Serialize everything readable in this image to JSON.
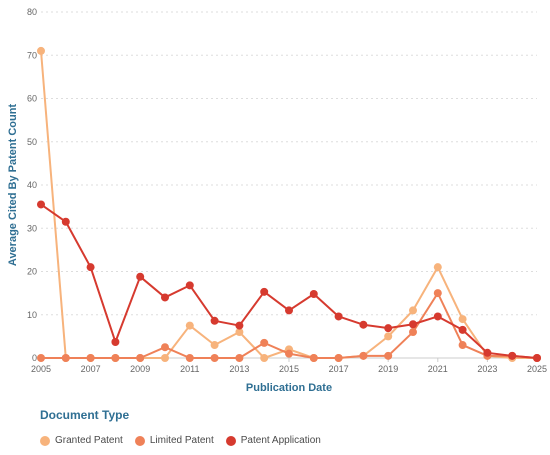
{
  "chart_data": {
    "type": "line",
    "title": "",
    "xlabel": "Publication Date",
    "ylabel": "Average Cited By Patent Count",
    "x": [
      2005,
      2006,
      2007,
      2008,
      2009,
      2010,
      2011,
      2012,
      2013,
      2014,
      2015,
      2016,
      2017,
      2018,
      2019,
      2020,
      2021,
      2022,
      2023,
      2024,
      2025
    ],
    "xlim": [
      2005,
      2025
    ],
    "ylim": [
      0,
      80
    ],
    "x_ticks": [
      "2005",
      "2007",
      "2009",
      "2011",
      "2013",
      "2015",
      "2017",
      "2019",
      "2021",
      "2023",
      "2025"
    ],
    "y_ticks": [
      "0",
      "10",
      "20",
      "30",
      "40",
      "50",
      "60",
      "70",
      "80"
    ],
    "grid": "horizontal-dotted",
    "legend_position": "bottom-left",
    "legend_title": "Document Type",
    "series": [
      {
        "name": "Granted Patent",
        "color": "#f7b37c",
        "values": [
          71,
          0,
          0,
          0,
          0,
          0,
          7.5,
          3,
          6,
          0,
          2,
          0,
          0,
          0.5,
          5,
          11,
          21,
          9,
          0.5,
          0,
          0
        ]
      },
      {
        "name": "Limited Patent",
        "color": "#ef8158",
        "values": [
          0,
          0,
          0,
          0,
          0,
          2.5,
          0,
          0,
          0,
          3.5,
          1,
          0,
          0,
          0.5,
          0.5,
          6,
          15,
          3,
          0.5,
          0.5,
          0
        ]
      },
      {
        "name": "Patent Application",
        "color": "#d63a2f",
        "values": [
          35.5,
          31.5,
          21,
          3.7,
          18.8,
          14,
          16.8,
          8.6,
          7.5,
          15.3,
          11,
          14.8,
          9.6,
          7.7,
          6.9,
          7.8,
          9.6,
          6.5,
          1.2,
          0.5,
          0
        ]
      }
    ]
  }
}
